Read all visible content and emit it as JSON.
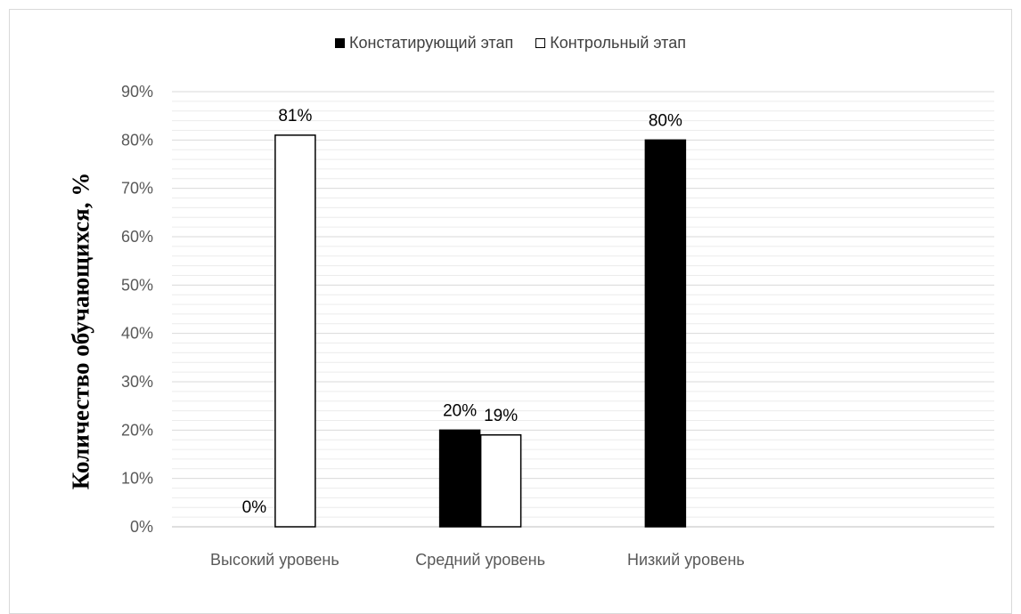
{
  "chart_data": {
    "type": "bar",
    "categories": [
      "Высокий уровень",
      "Средний уровень",
      "Низкий уровень"
    ],
    "series": [
      {
        "name": "Констатирующий этап",
        "values": [
          0,
          20,
          80
        ],
        "labels": [
          "0%",
          "20%",
          "80%"
        ],
        "color": "#000000"
      },
      {
        "name": "Контрольный этап",
        "values": [
          81,
          19,
          null
        ],
        "labels": [
          "81%",
          "19%",
          ""
        ],
        "color": "#ffffff"
      }
    ],
    "ylabel": "Количество обучающихся, %",
    "xlabel": "",
    "ylim": [
      0,
      90
    ],
    "yticks": [
      "0%",
      "10%",
      "20%",
      "30%",
      "40%",
      "50%",
      "60%",
      "70%",
      "80%",
      "90%"
    ],
    "grid": true,
    "legend_position": "top"
  }
}
